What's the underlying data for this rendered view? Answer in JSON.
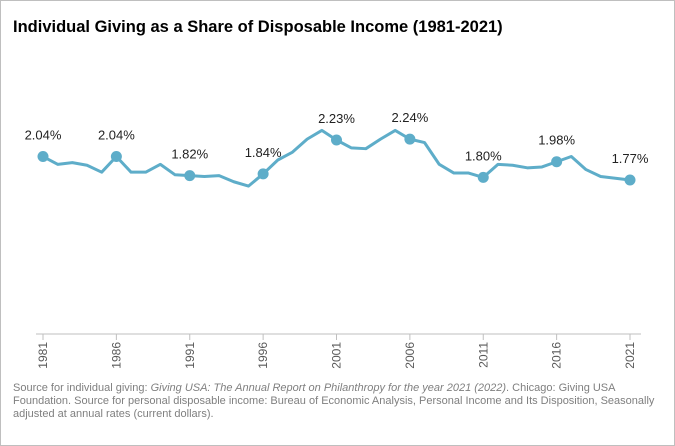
{
  "chart_data": {
    "type": "line",
    "title": "Individual Giving as a Share of Disposable Income (1981-2021)",
    "x": [
      1981,
      1982,
      1983,
      1984,
      1985,
      1986,
      1987,
      1988,
      1989,
      1990,
      1991,
      1992,
      1993,
      1994,
      1995,
      1996,
      1997,
      1998,
      1999,
      2000,
      2001,
      2002,
      2003,
      2004,
      2005,
      2006,
      2007,
      2008,
      2009,
      2010,
      2011,
      2012,
      2013,
      2014,
      2015,
      2016,
      2017,
      2018,
      2019,
      2020,
      2021
    ],
    "xlim": [
      1981,
      2021
    ],
    "xticks": [
      1981,
      1986,
      1991,
      1996,
      2001,
      2006,
      2011,
      2016,
      2021
    ],
    "series": [
      {
        "color": "#5eadc9",
        "values": [
          2.04,
          1.95,
          1.97,
          1.94,
          1.86,
          2.04,
          1.86,
          1.86,
          1.95,
          1.83,
          1.82,
          1.81,
          1.82,
          1.75,
          1.7,
          1.84,
          2.0,
          2.09,
          2.24,
          2.34,
          2.23,
          2.14,
          2.13,
          2.24,
          2.34,
          2.24,
          2.2,
          1.95,
          1.85,
          1.85,
          1.8,
          1.95,
          1.94,
          1.91,
          1.92,
          1.98,
          2.04,
          1.89,
          1.81,
          1.79,
          1.77
        ],
        "value_labels": [
          "2.04%",
          null,
          null,
          null,
          null,
          "2.04%",
          null,
          null,
          null,
          null,
          "1.82%",
          null,
          null,
          null,
          null,
          "1.84%",
          null,
          null,
          null,
          null,
          "2.23%",
          null,
          null,
          null,
          null,
          "2.24%",
          null,
          null,
          null,
          null,
          "1.80%",
          null,
          null,
          null,
          null,
          "1.98%",
          null,
          null,
          null,
          null,
          "1.77%"
        ]
      }
    ],
    "source": [
      "Source for individual giving: ",
      "Giving USA: The Annual Report on Philanthropy for the year 2021 (2022)",
      ". Chicago: Giving USA Foundation. Source for personal disposable income: Bureau of Economic Analysis, Personal Income and Its Disposition, Seasonally adjusted at annual rates (current dollars)."
    ]
  }
}
